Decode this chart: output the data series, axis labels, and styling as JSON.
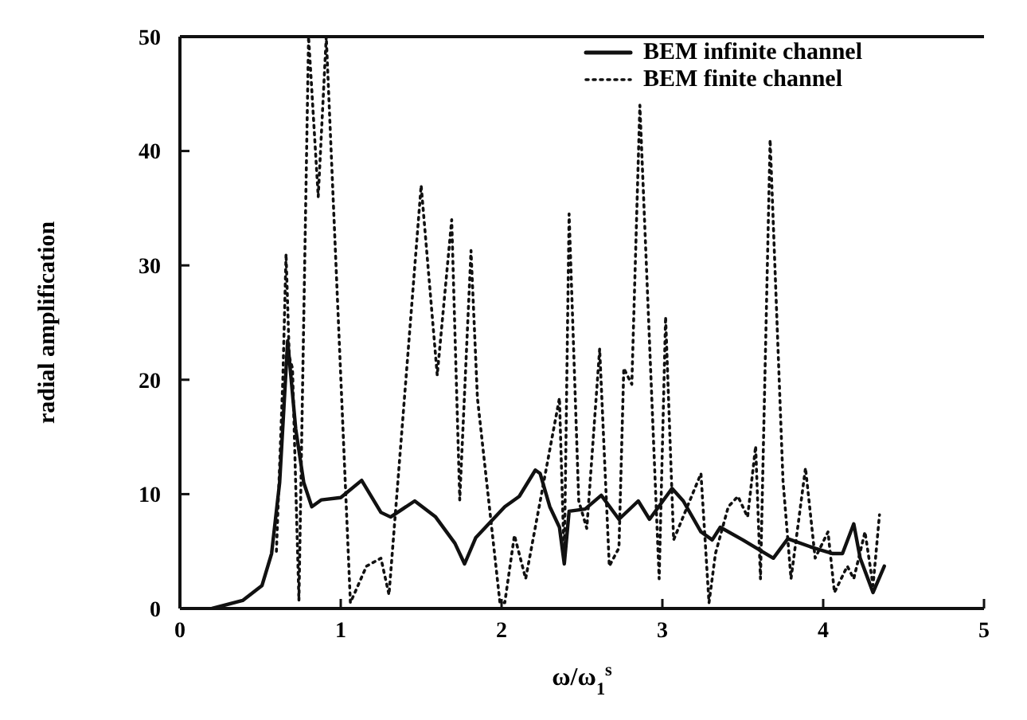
{
  "chart_data": {
    "type": "line",
    "xlabel": "ω/ω$_{1}$$^{s}$",
    "ylabel": "radial amplification",
    "xlim": [
      0,
      5
    ],
    "ylim": [
      0,
      50
    ],
    "xticks": [
      0,
      1,
      2,
      3,
      4,
      5
    ],
    "yticks": [
      0,
      10,
      20,
      30,
      40,
      50
    ],
    "grid": false,
    "legend": "top right",
    "marker": "none",
    "series": [
      {
        "name": "BEM infinite channel",
        "color": "#111111",
        "line_style": "solid",
        "x": [
          0.2,
          0.39,
          0.51,
          0.57,
          0.62,
          0.67,
          0.72,
          0.77,
          0.82,
          0.88,
          1.0,
          1.13,
          1.25,
          1.31,
          1.46,
          1.59,
          1.71,
          1.77,
          1.84,
          2.02,
          2.11,
          2.21,
          2.24,
          2.3,
          2.36,
          2.39,
          2.42,
          2.52,
          2.62,
          2.73,
          2.85,
          2.92,
          3.06,
          3.13,
          3.24,
          3.31,
          3.36,
          3.5,
          3.69,
          3.78,
          3.94,
          4.06,
          4.12,
          4.19,
          4.23,
          4.31,
          4.38
        ],
        "values": [
          0,
          0.7,
          2,
          4.8,
          11,
          23.4,
          15.7,
          11,
          8.9,
          9.5,
          9.7,
          11.2,
          8.4,
          8,
          9.4,
          8,
          5.7,
          3.9,
          6.2,
          8.9,
          9.8,
          12.1,
          11.8,
          8.9,
          7.1,
          3.9,
          8.5,
          8.7,
          9.9,
          7.8,
          9.4,
          7.8,
          10.5,
          9.4,
          6.7,
          6,
          7.1,
          6,
          4.4,
          6.1,
          5.3,
          4.8,
          4.8,
          7.4,
          4.4,
          1.4,
          3.7
        ]
      },
      {
        "name": "BEM finite channel",
        "color": "#111111",
        "line_style": "dotted",
        "x": [
          0.6,
          0.64,
          0.66,
          0.68,
          0.7,
          0.74,
          0.8,
          0.86,
          0.91,
          1.06,
          1.16,
          1.25,
          1.3,
          1.5,
          1.6,
          1.69,
          1.74,
          1.81,
          1.85,
          1.99,
          2.02,
          2.08,
          2.15,
          2.36,
          2.39,
          2.42,
          2.48,
          2.53,
          2.61,
          2.67,
          2.73,
          2.76,
          2.81,
          2.86,
          2.98,
          3.02,
          3.07,
          3.24,
          3.29,
          3.33,
          3.41,
          3.47,
          3.53,
          3.58,
          3.61,
          3.67,
          3.75,
          3.8,
          3.89,
          3.95,
          4.03,
          4.07,
          4.15,
          4.19,
          4.26,
          4.31,
          4.35
        ],
        "values": [
          5,
          20,
          31,
          22,
          21,
          0.7,
          50,
          36,
          50,
          0.5,
          3.7,
          4.4,
          1.2,
          37,
          20.4,
          34,
          9.5,
          31.3,
          18.4,
          0.5,
          0.5,
          6.4,
          2.6,
          18.4,
          4,
          34.5,
          9.4,
          7,
          22.7,
          3.7,
          5.3,
          21,
          19.6,
          44,
          2.6,
          25.5,
          6,
          11.8,
          0.5,
          4.8,
          8.9,
          9.8,
          8,
          14.2,
          2.6,
          41,
          11.2,
          2.6,
          12.3,
          4.4,
          6.7,
          1.4,
          3.7,
          2.6,
          6.7,
          2,
          8.2
        ]
      }
    ]
  }
}
